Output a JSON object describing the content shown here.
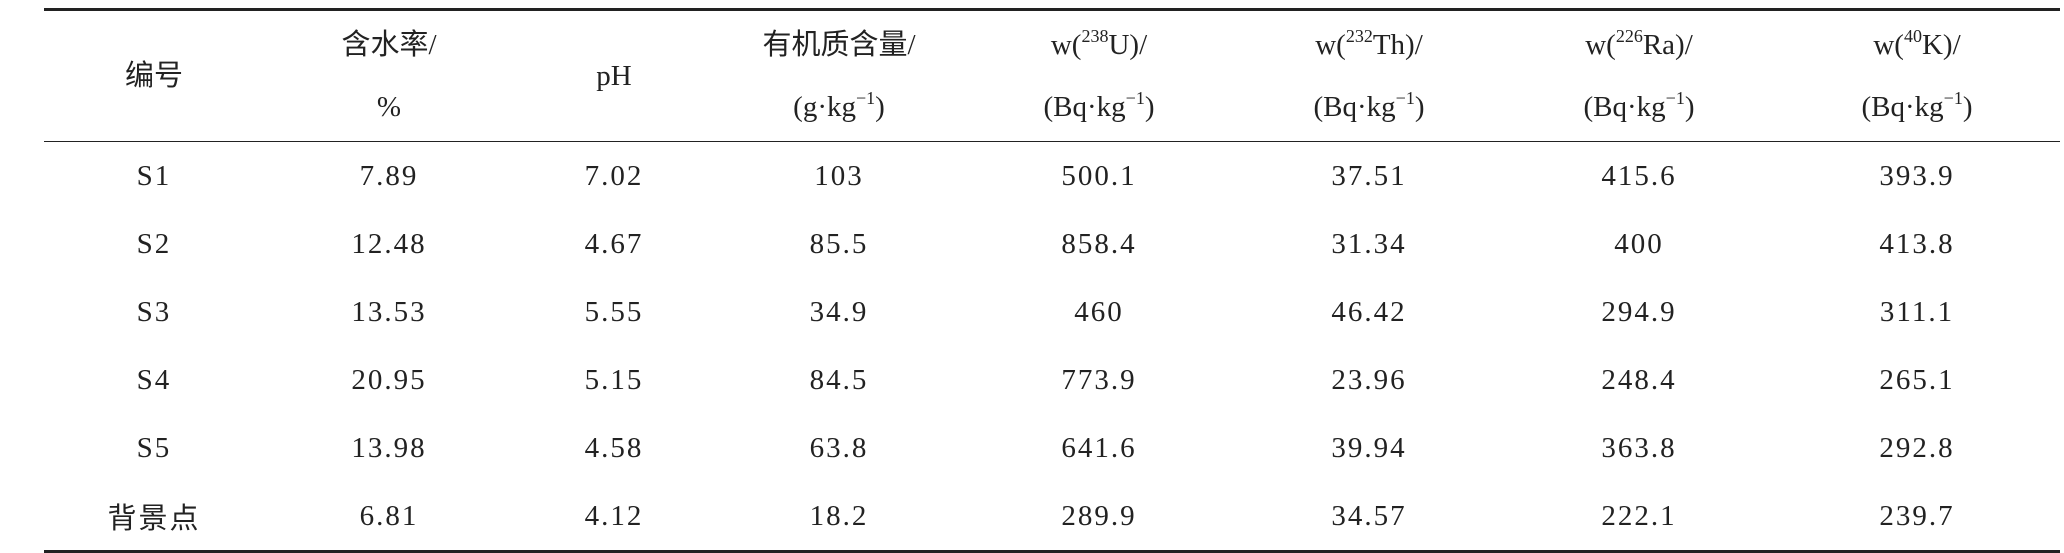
{
  "table": {
    "header": [
      [
        [
          {
            "text": "编号"
          }
        ]
      ],
      [
        [
          {
            "text": "含水率/"
          }
        ],
        [
          {
            "text": "%"
          }
        ]
      ],
      [
        [
          {
            "text": "pH"
          }
        ]
      ],
      [
        [
          {
            "text": "有机质含量/"
          }
        ],
        [
          {
            "text": "(g·kg"
          },
          {
            "text": "−1",
            "sup": true
          },
          {
            "text": ")"
          }
        ]
      ],
      [
        [
          {
            "text": "w("
          },
          {
            "text": "238",
            "sup": true
          },
          {
            "text": "U)/"
          }
        ],
        [
          {
            "text": "(Bq·kg"
          },
          {
            "text": "−1",
            "sup": true
          },
          {
            "text": ")"
          }
        ]
      ],
      [
        [
          {
            "text": "w("
          },
          {
            "text": "232",
            "sup": true
          },
          {
            "text": "Th)/"
          }
        ],
        [
          {
            "text": "(Bq·kg"
          },
          {
            "text": "−1",
            "sup": true
          },
          {
            "text": ")"
          }
        ]
      ],
      [
        [
          {
            "text": "w("
          },
          {
            "text": "226",
            "sup": true
          },
          {
            "text": "Ra)/"
          }
        ],
        [
          {
            "text": "(Bq·kg"
          },
          {
            "text": "−1",
            "sup": true
          },
          {
            "text": ")"
          }
        ]
      ],
      [
        [
          {
            "text": "w("
          },
          {
            "text": "40",
            "sup": true
          },
          {
            "text": "K)/"
          }
        ],
        [
          {
            "text": "(Bq·kg"
          },
          {
            "text": "−1",
            "sup": true
          },
          {
            "text": ")"
          }
        ]
      ]
    ],
    "rows": [
      [
        "S1",
        "7.89",
        "7.02",
        "103",
        "500.1",
        "37.51",
        "415.6",
        "393.9"
      ],
      [
        "S2",
        "12.48",
        "4.67",
        "85.5",
        "858.4",
        "31.34",
        "400",
        "413.8"
      ],
      [
        "S3",
        "13.53",
        "5.55",
        "34.9",
        "460",
        "46.42",
        "294.9",
        "311.1"
      ],
      [
        "S4",
        "20.95",
        "5.15",
        "84.5",
        "773.9",
        "23.96",
        "248.4",
        "265.1"
      ],
      [
        "S5",
        "13.98",
        "4.58",
        "63.8",
        "641.6",
        "39.94",
        "363.8",
        "292.8"
      ],
      [
        "背景点",
        "6.81",
        "4.12",
        "18.2",
        "289.9",
        "34.57",
        "222.1",
        "239.7"
      ]
    ]
  }
}
